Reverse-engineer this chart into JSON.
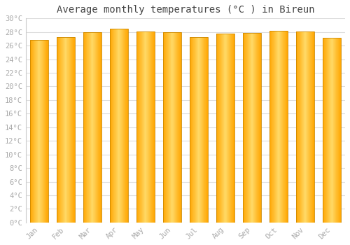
{
  "title": "Average monthly temperatures (°C ) in Bireun",
  "months": [
    "Jan",
    "Feb",
    "Mar",
    "Apr",
    "May",
    "Jun",
    "Jul",
    "Aug",
    "Sep",
    "Oct",
    "Nov",
    "Dec"
  ],
  "values": [
    26.8,
    27.3,
    28.0,
    28.5,
    28.1,
    28.0,
    27.3,
    27.8,
    27.9,
    28.2,
    28.1,
    27.1
  ],
  "ylim": [
    0,
    30
  ],
  "yticks": [
    0,
    2,
    4,
    6,
    8,
    10,
    12,
    14,
    16,
    18,
    20,
    22,
    24,
    26,
    28,
    30
  ],
  "ytick_labels": [
    "0°C",
    "2°C",
    "4°C",
    "6°C",
    "8°C",
    "10°C",
    "12°C",
    "14°C",
    "16°C",
    "18°C",
    "20°C",
    "22°C",
    "24°C",
    "26°C",
    "28°C",
    "30°C"
  ],
  "background_color": "#ffffff",
  "grid_color": "#dddddd",
  "title_fontsize": 10,
  "tick_fontsize": 7.5,
  "tick_color": "#aaaaaa",
  "bar_color_center": "#FFD966",
  "bar_color_edge": "#FFA500",
  "bar_border_color": "#CC8800",
  "bar_width": 0.7
}
